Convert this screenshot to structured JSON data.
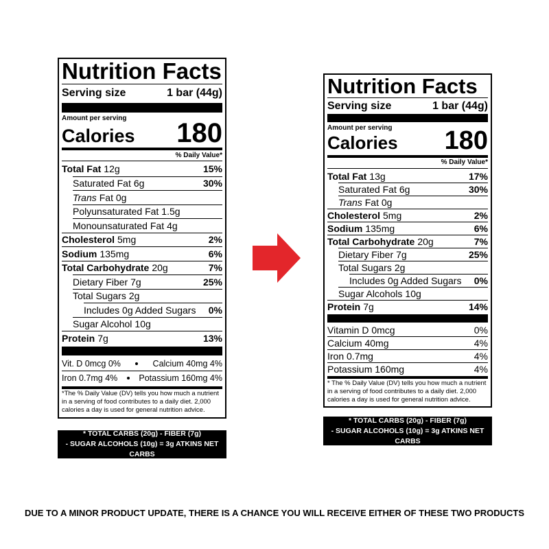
{
  "labels": [
    {
      "title": "Nutrition Facts",
      "serving_label": "Serving size",
      "serving_value": "1 bar (44g)",
      "amount_per_serving": "Amount per serving",
      "calories_label": "Calories",
      "calories_value": "180",
      "dv_header": "% Daily Value*",
      "nutrients": [
        {
          "name": "Total Fat",
          "amount": "12g",
          "dv": "15%",
          "bold": true,
          "indent": 0
        },
        {
          "name": "Saturated Fat",
          "amount": "6g",
          "dv": "30%",
          "indent": 1
        },
        {
          "name": "Trans",
          "amount": "Fat 0g",
          "italic": true,
          "indent": 1
        },
        {
          "name": "Polyunsaturated Fat",
          "amount": "1.5g",
          "indent": 1
        },
        {
          "name": "Monounsaturated Fat",
          "amount": "4g",
          "indent": 1
        },
        {
          "name": "Cholesterol",
          "amount": "5mg",
          "dv": "2%",
          "bold": true,
          "indent": 0
        },
        {
          "name": "Sodium",
          "amount": "135mg",
          "dv": "6%",
          "bold": true,
          "indent": 0
        },
        {
          "name": "Total Carbohydrate",
          "amount": "20g",
          "dv": "7%",
          "bold": true,
          "indent": 0
        },
        {
          "name": "Dietary Fiber",
          "amount": "7g",
          "dv": "25%",
          "indent": 1
        },
        {
          "name": "Total Sugars",
          "amount": "2g",
          "indent": 1
        },
        {
          "name": "Includes 0g Added Sugars",
          "dv": "0%",
          "indent": 2
        },
        {
          "name": "Sugar Alcohol",
          "amount": "10g",
          "indent": 1
        },
        {
          "name": "Protein",
          "amount": "7g",
          "dv": "13%",
          "bold": true,
          "indent": 0
        }
      ],
      "vitamins": [
        {
          "left": "Vit. D 0mcg 0%",
          "right": "Calcium 40mg 4%"
        },
        {
          "left": "Iron 0.7mg 4%",
          "right": "Potassium 160mg 4%"
        }
      ],
      "footnote": "*The % Daily Value (DV) tells you how much a nutrient in a serving of food contributes to a daily diet. 2,000 calories a day is used for general nutrition advice.",
      "net_carbs": [
        "* TOTAL CARBS (20g) - FIBER (7g)",
        "- SUGAR ALCOHOLS (10g) = 3g ATKINS NET CARBS"
      ]
    },
    {
      "title": "Nutrition Facts",
      "serving_label": "Serving size",
      "serving_value": "1 bar (44g)",
      "amount_per_serving": "Amount per serving",
      "calories_label": "Calories",
      "calories_value": "180",
      "dv_header": "% Daily Value*",
      "nutrients": [
        {
          "name": "Total Fat",
          "amount": "13g",
          "dv": "17%",
          "bold": true,
          "indent": 0
        },
        {
          "name": "Saturated Fat",
          "amount": "6g",
          "dv": "30%",
          "indent": 1
        },
        {
          "name": "Trans",
          "amount": "Fat 0g",
          "italic": true,
          "indent": 1
        },
        {
          "name": "Cholesterol",
          "amount": "5mg",
          "dv": "2%",
          "bold": true,
          "indent": 0
        },
        {
          "name": "Sodium",
          "amount": "135mg",
          "dv": "6%",
          "bold": true,
          "indent": 0
        },
        {
          "name": "Total Carbohydrate",
          "amount": "20g",
          "dv": "7%",
          "bold": true,
          "indent": 0
        },
        {
          "name": "Dietary Fiber",
          "amount": "7g",
          "dv": "25%",
          "indent": 1
        },
        {
          "name": "Total Sugars",
          "amount": "2g",
          "indent": 1
        },
        {
          "name": "Includes 0g Added Sugars",
          "dv": "0%",
          "indent": 2
        },
        {
          "name": "Sugar Alcohols",
          "amount": "10g",
          "indent": 1
        },
        {
          "name": "Protein",
          "amount": "7g",
          "dv": "14%",
          "bold": true,
          "indent": 0
        }
      ],
      "vitamins": [
        {
          "name": "Vitamin D 0mcg",
          "dv": "0%"
        },
        {
          "name": "Calcium 40mg",
          "dv": "4%"
        },
        {
          "name": "Iron 0.7mg",
          "dv": "4%"
        },
        {
          "name": "Potassium 160mg",
          "dv": "4%"
        }
      ],
      "footnote": "* The % Daily Value (DV) tells you how much a nutrient in a serving of food contributes to a daily diet. 2,000 calories a day is used for general nutrition advice.",
      "net_carbs": [
        "* TOTAL CARBS (20g) - FIBER (7g)",
        "- SUGAR ALCOHOLS (10g) = 3g ATKINS NET CARBS"
      ]
    }
  ],
  "notice": "DUE TO A MINOR PRODUCT UPDATE, THERE IS A CHANCE YOU WILL RECEIVE EITHER OF THESE TWO PRODUCTS"
}
